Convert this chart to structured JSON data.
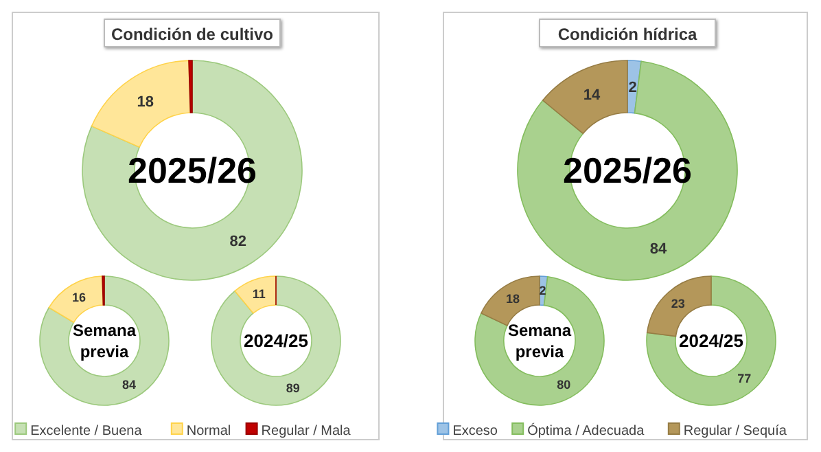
{
  "chart_data": [
    {
      "type": "donut",
      "title": "Condición de cultivo",
      "values": [
        82,
        18,
        0.5
      ],
      "colors": [
        "#c6e0b4",
        "#ffe699",
        "#c00000"
      ],
      "value_labels": [
        "82",
        "18",
        null
      ],
      "annotations": [
        "2025/26"
      ]
    },
    {
      "type": "donut",
      "values": [
        84,
        16,
        0.5
      ],
      "colors": [
        "#c6e0b4",
        "#ffe699",
        "#c00000"
      ],
      "value_labels": [
        "84",
        "16",
        null
      ],
      "annotations": [
        "Semana\nprevia"
      ]
    },
    {
      "type": "donut",
      "categories": [
        "Excelente / Buena",
        "Normal",
        "Regular / Mala"
      ],
      "values": [
        89,
        11,
        0
      ],
      "colors": [
        "#c6e0b4",
        "#ffe699",
        "#c00000"
      ],
      "value_labels": [
        "89",
        "11",
        null
      ],
      "annotations": [
        "2024/25"
      ],
      "legend": "bottom"
    },
    {
      "type": "donut",
      "title": "Condición hídrica",
      "values": [
        2,
        84,
        14
      ],
      "colors": [
        "#9dc3e6",
        "#a9d18e",
        "#b4975a"
      ],
      "value_labels": [
        "2",
        "84",
        "14"
      ],
      "annotations": [
        "2025/26"
      ]
    },
    {
      "type": "donut",
      "values": [
        2,
        80,
        18
      ],
      "colors": [
        "#9dc3e6",
        "#a9d18e",
        "#b4975a"
      ],
      "value_labels": [
        "2",
        "80",
        "18"
      ],
      "annotations": [
        "Semana\nprevia"
      ]
    },
    {
      "type": "donut",
      "categories": [
        "Exceso",
        "Óptima / Adecuada",
        "Regular / Sequía"
      ],
      "values": [
        0,
        77,
        23
      ],
      "colors": [
        "#9dc3e6",
        "#a9d18e",
        "#b4975a"
      ],
      "value_labels": [
        null,
        "77",
        "23"
      ],
      "annotations": [
        "2024/25"
      ],
      "legend": "bottom"
    }
  ]
}
